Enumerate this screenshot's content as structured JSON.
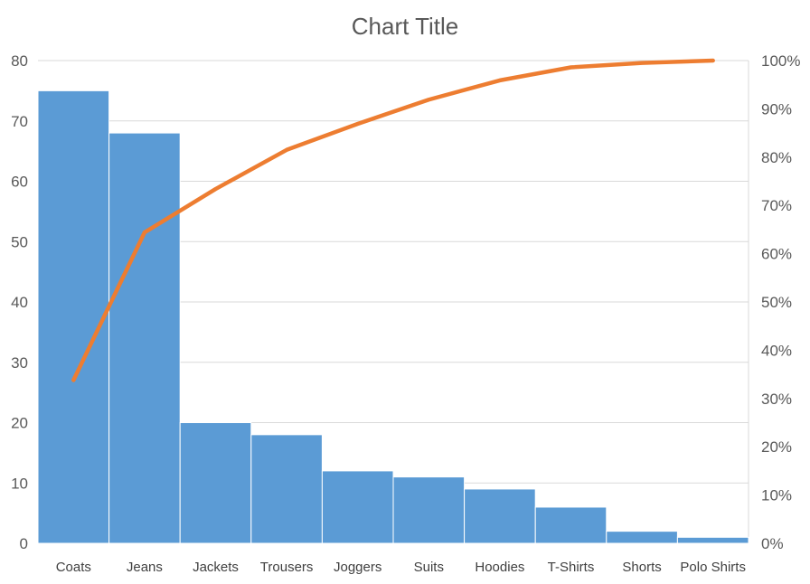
{
  "chart_data": {
    "type": "bar",
    "title": "Chart Title",
    "categories": [
      "Coats",
      "Jeans",
      "Jackets",
      "Trousers",
      "Joggers",
      "Suits",
      "Hoodies",
      "T-Shirts",
      "Shorts",
      "Polo Shirts"
    ],
    "series": [
      {
        "type": "bar",
        "axis": "left",
        "color": "#5b9bd5",
        "values": [
          75,
          68,
          20,
          18,
          12,
          11,
          9,
          6,
          2,
          1
        ]
      },
      {
        "type": "line",
        "axis": "right",
        "color": "#ed7d31",
        "values": [
          33.8,
          64.4,
          73.4,
          81.5,
          86.9,
          91.9,
          95.9,
          98.6,
          99.5,
          100.0
        ]
      }
    ],
    "y_left": {
      "min": 0,
      "max": 80,
      "ticks": [
        "0",
        "10",
        "20",
        "30",
        "40",
        "50",
        "60",
        "70",
        "80"
      ]
    },
    "y_right": {
      "min": 0,
      "max": 100,
      "ticks": [
        "0%",
        "10%",
        "20%",
        "30%",
        "40%",
        "50%",
        "60%",
        "70%",
        "80%",
        "90%",
        "100%"
      ]
    },
    "grid": true,
    "legend": "none"
  }
}
